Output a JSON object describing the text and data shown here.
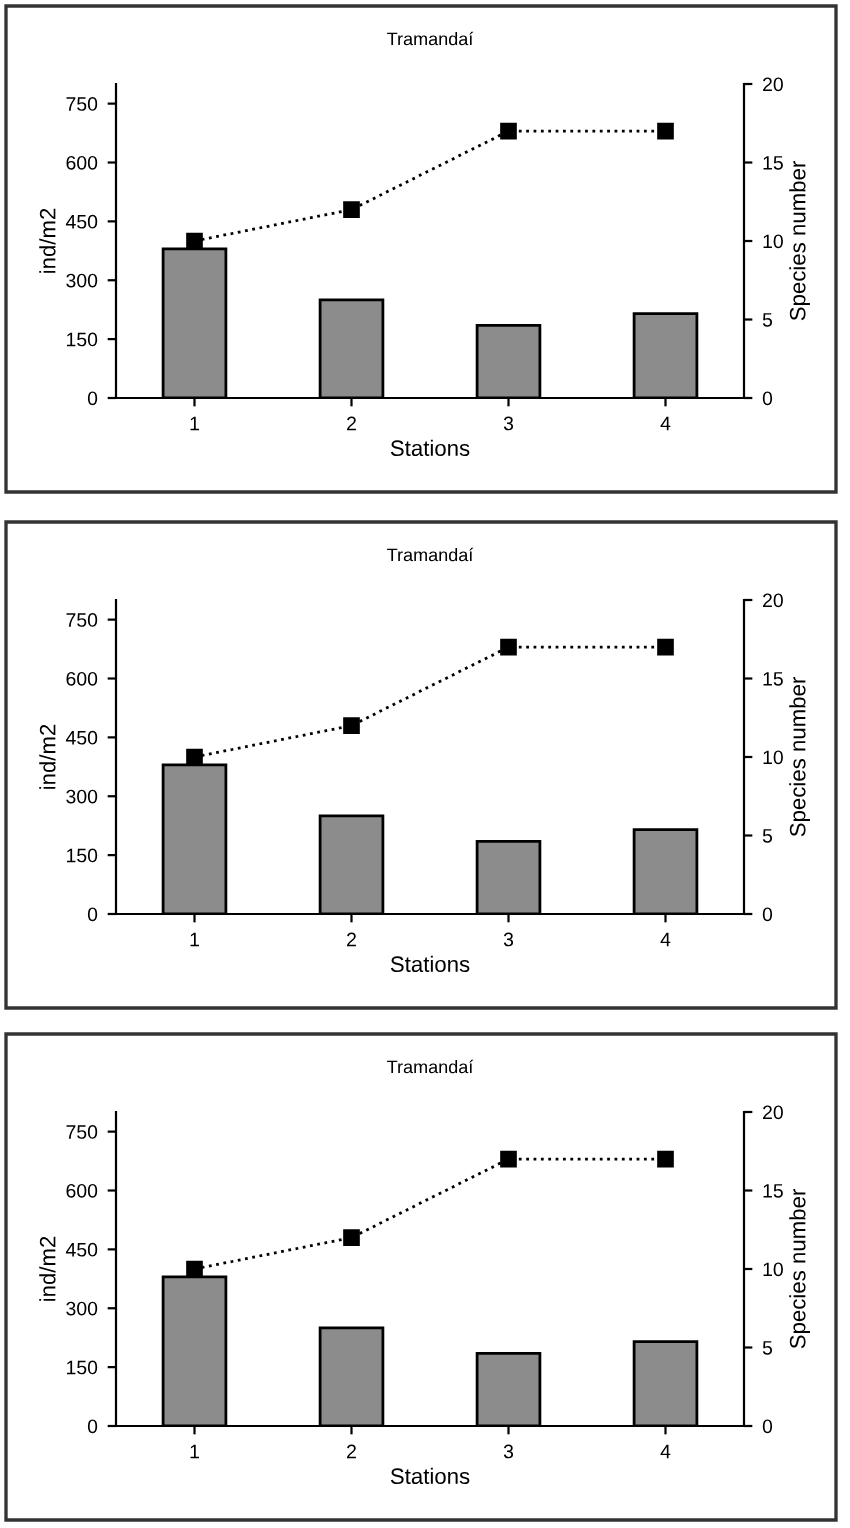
{
  "chart_data": [
    {
      "type": "bar",
      "title": "Tramandaí",
      "xlabel": "Stations",
      "ylabel": "ind/m2",
      "y2label": "Species number",
      "categories": [
        "1",
        "2",
        "3",
        "4"
      ],
      "series": [
        {
          "color": "#8c8c8c",
          "values": [
            380,
            250,
            185,
            215
          ]
        },
        {
          "type": "line",
          "color": "#000000",
          "axis": "y2",
          "marker": "square",
          "line_style": "dotted",
          "values": [
            10,
            12,
            17,
            17
          ]
        }
      ],
      "ylim": [
        0,
        800
      ],
      "yticks": [
        0,
        150,
        300,
        450,
        600,
        750
      ],
      "y2lim": [
        0,
        20
      ],
      "y2ticks": [
        0,
        5,
        10,
        15,
        20
      ],
      "grid": false
    },
    {
      "type": "bar",
      "title": "Tramandaí",
      "xlabel": "Stations",
      "ylabel": "ind/m2",
      "y2label": "Species number",
      "categories": [
        "1",
        "2",
        "3",
        "4"
      ],
      "series": [
        {
          "color": "#8c8c8c",
          "values": [
            380,
            250,
            185,
            215
          ]
        },
        {
          "type": "line",
          "color": "#000000",
          "axis": "y2",
          "marker": "square",
          "line_style": "dotted",
          "values": [
            10,
            12,
            17,
            17
          ]
        }
      ],
      "ylim": [
        0,
        800
      ],
      "yticks": [
        0,
        150,
        300,
        450,
        600,
        750
      ],
      "y2lim": [
        0,
        20
      ],
      "y2ticks": [
        0,
        5,
        10,
        15,
        20
      ],
      "grid": false
    },
    {
      "type": "bar",
      "title": "Tramandaí",
      "xlabel": "Stations",
      "ylabel": "ind/m2",
      "y2label": "Species number",
      "categories": [
        "1",
        "2",
        "3",
        "4"
      ],
      "series": [
        {
          "color": "#8c8c8c",
          "values": [
            380,
            250,
            185,
            215
          ]
        },
        {
          "type": "line",
          "color": "#000000",
          "axis": "y2",
          "marker": "square",
          "line_style": "dotted",
          "values": [
            10,
            12,
            17,
            17
          ]
        }
      ],
      "ylim": [
        0,
        800
      ],
      "yticks": [
        0,
        150,
        300,
        450,
        600,
        750
      ],
      "y2lim": [
        0,
        20
      ],
      "y2ticks": [
        0,
        5,
        10,
        15,
        20
      ],
      "grid": false
    }
  ]
}
